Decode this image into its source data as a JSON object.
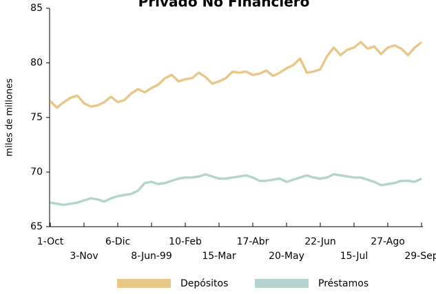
{
  "chart_data": {
    "type": "line",
    "title": "Privado No Financiero",
    "ylabel": "miles de millones",
    "categories": [
      "1-Oct",
      null,
      null,
      null,
      null,
      "3-Nov",
      null,
      null,
      null,
      null,
      "6-Dic",
      null,
      null,
      null,
      null,
      "8-Jun-99",
      null,
      null,
      null,
      null,
      "10-Feb",
      null,
      null,
      null,
      null,
      "15-Mar",
      null,
      null,
      null,
      null,
      "17-Abr",
      null,
      null,
      null,
      null,
      "20-May",
      null,
      null,
      null,
      null,
      "22-Jun",
      null,
      null,
      null,
      null,
      "15-Jul",
      null,
      null,
      null,
      null,
      "27-Ago",
      null,
      null,
      null,
      null,
      "29-Sep"
    ],
    "series": [
      {
        "name": "Depósitos",
        "color": "#e8c78a",
        "values": [
          76.5,
          75.9,
          76.4,
          76.8,
          77.0,
          76.3,
          76.0,
          76.1,
          76.4,
          76.9,
          76.4,
          76.6,
          77.2,
          77.6,
          77.3,
          77.7,
          78.0,
          78.6,
          78.9,
          78.3,
          78.5,
          78.6,
          79.1,
          78.7,
          78.1,
          78.3,
          78.6,
          79.2,
          79.1,
          79.2,
          78.9,
          79.0,
          79.3,
          78.8,
          79.1,
          79.5,
          79.8,
          80.4,
          79.1,
          79.2,
          79.4,
          80.6,
          81.4,
          80.7,
          81.2,
          81.4,
          81.9,
          81.3,
          81.5,
          80.8,
          81.4,
          81.6,
          81.3,
          80.7,
          81.4,
          81.9
        ]
      },
      {
        "name": "Préstamos",
        "color": "#b5d3cf",
        "values": [
          67.2,
          67.1,
          67.0,
          67.1,
          67.2,
          67.4,
          67.6,
          67.5,
          67.3,
          67.6,
          67.8,
          67.9,
          68.0,
          68.3,
          69.0,
          69.1,
          68.9,
          69.0,
          69.2,
          69.4,
          69.5,
          69.5,
          69.6,
          69.8,
          69.6,
          69.4,
          69.4,
          69.5,
          69.6,
          69.7,
          69.5,
          69.2,
          69.2,
          69.3,
          69.4,
          69.1,
          69.3,
          69.5,
          69.7,
          69.5,
          69.4,
          69.5,
          69.8,
          69.7,
          69.6,
          69.5,
          69.5,
          69.3,
          69.1,
          68.8,
          68.9,
          69.0,
          69.2,
          69.2,
          69.1,
          69.4
        ]
      }
    ],
    "ylim": [
      65,
      85
    ],
    "yticks": [
      65,
      70,
      75,
      80,
      85
    ]
  }
}
